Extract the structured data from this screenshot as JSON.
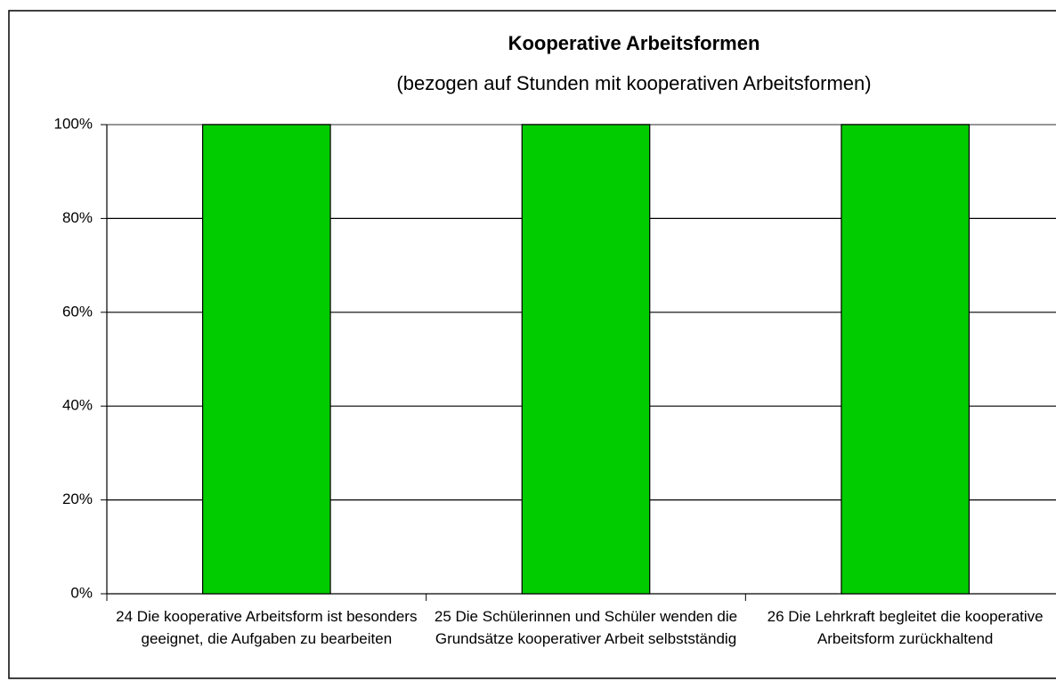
{
  "chart_data": {
    "type": "bar",
    "title": "Kooperative Arbeitsformen",
    "subtitle": "(bezogen auf Stunden mit kooperativen Arbeitsformen)",
    "categories": [
      "24 Die kooperative Arbeitsform ist besonders geeignet, die Aufgaben zu bearbeiten",
      "25 Die Schülerinnen und Schüler wenden die Grundsätze kooperativer Arbeit selbstständig",
      "26 Die Lehrkraft begleitet die kooperative Arbeitsform zurückhaltend"
    ],
    "values": [
      100,
      100,
      100
    ],
    "color": "#00cc00",
    "ylim": [
      0,
      100
    ],
    "yticks": [
      {
        "value": 0,
        "label": "0%"
      },
      {
        "value": 20,
        "label": "20%"
      },
      {
        "value": 40,
        "label": "40%"
      },
      {
        "value": 60,
        "label": "60%"
      },
      {
        "value": 80,
        "label": "80%"
      },
      {
        "value": 100,
        "label": "100%"
      }
    ],
    "grid": true
  }
}
